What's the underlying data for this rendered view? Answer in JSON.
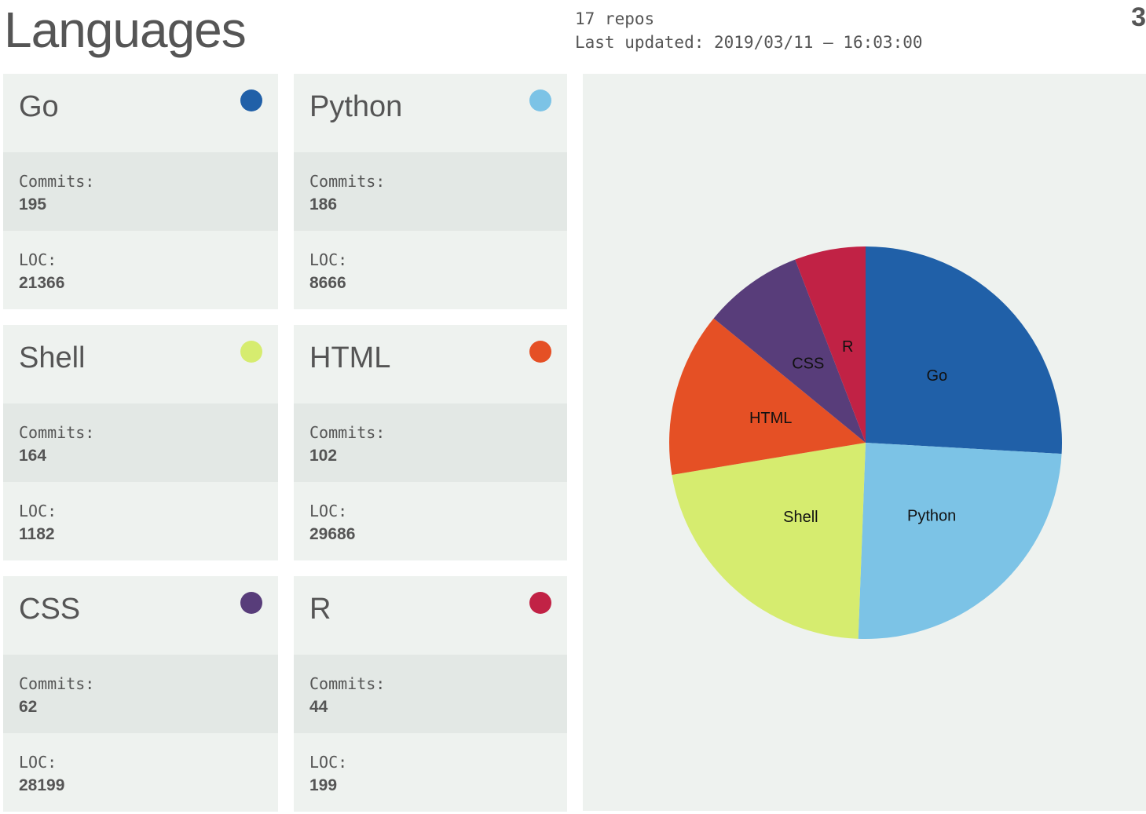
{
  "header": {
    "title": "Languages",
    "repos": "17 repos",
    "last_updated": "Last updated: 2019/03/11 — 16:03:00",
    "page_number": "3"
  },
  "labels": {
    "commits": "Commits:",
    "loc": "LOC:"
  },
  "languages": [
    {
      "name": "Go",
      "color": "#2060a8",
      "commits": "195",
      "loc": "21366"
    },
    {
      "name": "Python",
      "color": "#7cc3e6",
      "commits": "186",
      "loc": "8666"
    },
    {
      "name": "Shell",
      "color": "#d6ec6f",
      "commits": "164",
      "loc": "1182"
    },
    {
      "name": "HTML",
      "color": "#e55025",
      "commits": "102",
      "loc": "29686"
    },
    {
      "name": "CSS",
      "color": "#583d7a",
      "commits": "62",
      "loc": "28199"
    },
    {
      "name": "R",
      "color": "#c12245",
      "commits": "44",
      "loc": "199"
    }
  ],
  "chart_data": {
    "type": "pie",
    "categories": [
      "Go",
      "Python",
      "Shell",
      "HTML",
      "CSS",
      "R"
    ],
    "values": [
      195,
      186,
      164,
      102,
      62,
      44
    ],
    "colors": [
      "#2060a8",
      "#7cc3e6",
      "#d6ec6f",
      "#e55025",
      "#583d7a",
      "#c12245"
    ],
    "start": "12 o'clock",
    "direction": "clockwise",
    "labels_inside": true
  }
}
